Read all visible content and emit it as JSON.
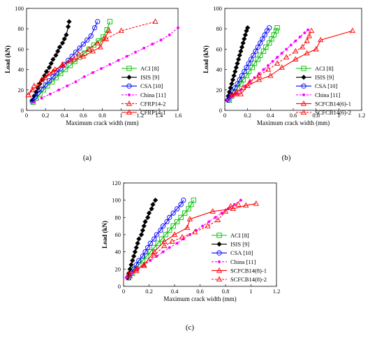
{
  "chart_data": [
    {
      "type": "line",
      "panel_label": "(a)",
      "xlabel": "Maximum crack width (mm)",
      "ylabel": "Load (kN)",
      "xlim": [
        0,
        1.6
      ],
      "ylim": [
        0,
        100
      ],
      "xticks": [
        "0",
        "0.2",
        "0.4",
        "0.6",
        "0.8",
        "1",
        "1.2",
        "1.4",
        "1.6"
      ],
      "yticks": [
        "0",
        "20",
        "40",
        "60",
        "80",
        "100"
      ],
      "legend_position": "right",
      "series": [
        {
          "name": "ACI [8]",
          "color": "#00c000",
          "marker": "square",
          "dashed": false,
          "x": [
            0.07,
            0.1,
            0.14,
            0.18,
            0.22,
            0.27,
            0.31,
            0.36,
            0.41,
            0.46,
            0.51,
            0.56,
            0.61,
            0.66,
            0.71,
            0.76,
            0.81,
            0.85,
            0.88
          ],
          "y": [
            8,
            12,
            16,
            20,
            24,
            28,
            32,
            36,
            40,
            44,
            48,
            52,
            56,
            60,
            64,
            68,
            72,
            79,
            87
          ]
        },
        {
          "name": "ISIS [9]",
          "color": "#000000",
          "marker": "diamond",
          "dashed": false,
          "x": [
            0.06,
            0.08,
            0.1,
            0.12,
            0.14,
            0.17,
            0.19,
            0.21,
            0.24,
            0.26,
            0.28,
            0.31,
            0.33,
            0.35,
            0.38,
            0.4,
            0.42,
            0.44,
            0.45
          ],
          "y": [
            10,
            14,
            18,
            22,
            26,
            30,
            34,
            38,
            42,
            46,
            50,
            54,
            58,
            62,
            66,
            70,
            74,
            82,
            87
          ]
        },
        {
          "name": "CSA [10]",
          "color": "#0000ff",
          "marker": "circle",
          "dashed": false,
          "x": [
            0.06,
            0.09,
            0.12,
            0.16,
            0.2,
            0.24,
            0.28,
            0.32,
            0.36,
            0.4,
            0.44,
            0.48,
            0.52,
            0.56,
            0.6,
            0.64,
            0.68,
            0.72,
            0.75
          ],
          "y": [
            9,
            13,
            17,
            21,
            25,
            29,
            33,
            37,
            41,
            45,
            49,
            53,
            57,
            61,
            65,
            69,
            73,
            81,
            87
          ]
        },
        {
          "name": "China [11]",
          "color": "#ff00ff",
          "marker": "dot",
          "dashed": true,
          "x": [
            0.08,
            0.16,
            0.25,
            0.34,
            0.43,
            0.52,
            0.61,
            0.7,
            0.79,
            0.88,
            0.97,
            1.06,
            1.15,
            1.24,
            1.33,
            1.42,
            1.51,
            1.6
          ],
          "y": [
            8,
            12,
            16,
            20,
            24,
            28,
            33,
            37,
            41,
            45,
            49,
            53,
            57,
            61,
            65,
            69,
            74,
            81
          ]
        },
        {
          "name": "CFRP14-2",
          "color": "#ff0000",
          "marker": "triangle",
          "dashed": true,
          "x": [
            0.02,
            0.08,
            0.16,
            0.24,
            0.3,
            0.38,
            0.46,
            0.55,
            0.66,
            0.75,
            0.84,
            1.0,
            1.36
          ],
          "y": [
            15,
            24,
            30,
            36,
            40,
            45,
            49,
            55,
            60,
            66,
            70,
            78,
            87
          ]
        },
        {
          "name": "CFRP14-1",
          "color": "#ff0000",
          "marker": "triangle",
          "dashed": false,
          "x": [
            0.02,
            0.06,
            0.12,
            0.2,
            0.28,
            0.38,
            0.5,
            0.6,
            0.7,
            0.78,
            0.82,
            0.87
          ],
          "y": [
            15,
            20,
            24,
            32,
            38,
            44,
            50,
            53,
            58,
            62,
            70,
            78
          ]
        }
      ]
    },
    {
      "type": "line",
      "panel_label": "(b)",
      "xlabel": "Maximum crack width (mm)",
      "ylabel": "Load (kN)",
      "xlim": [
        0,
        1.2
      ],
      "ylim": [
        0,
        100
      ],
      "xticks": [
        "0",
        "0.2",
        "0.4",
        "0.6",
        "0.8",
        "1",
        "1.2"
      ],
      "yticks": [
        "0",
        "20",
        "40",
        "60",
        "80",
        "100"
      ],
      "legend_position": "right",
      "series": [
        {
          "name": "ACI [8]",
          "color": "#00c000",
          "marker": "square",
          "dashed": false,
          "x": [
            0.04,
            0.06,
            0.09,
            0.11,
            0.14,
            0.16,
            0.19,
            0.21,
            0.24,
            0.26,
            0.29,
            0.31,
            0.34,
            0.36,
            0.39,
            0.41,
            0.43,
            0.45,
            0.46
          ],
          "y": [
            10,
            14,
            18,
            22,
            26,
            30,
            34,
            38,
            42,
            46,
            50,
            54,
            58,
            62,
            66,
            70,
            74,
            78,
            81
          ]
        },
        {
          "name": "ISIS [9]",
          "color": "#000000",
          "marker": "diamond",
          "dashed": false,
          "x": [
            0.02,
            0.03,
            0.04,
            0.05,
            0.06,
            0.07,
            0.08,
            0.09,
            0.1,
            0.11,
            0.12,
            0.13,
            0.14,
            0.15,
            0.16,
            0.17,
            0.18,
            0.19,
            0.2
          ],
          "y": [
            10,
            14,
            18,
            22,
            26,
            30,
            34,
            38,
            42,
            46,
            50,
            54,
            58,
            62,
            66,
            70,
            74,
            78,
            81
          ]
        },
        {
          "name": "CSA [10]",
          "color": "#0000ff",
          "marker": "circle",
          "dashed": false,
          "x": [
            0.03,
            0.05,
            0.07,
            0.09,
            0.11,
            0.13,
            0.15,
            0.17,
            0.19,
            0.21,
            0.23,
            0.25,
            0.27,
            0.29,
            0.31,
            0.33,
            0.35,
            0.37,
            0.39
          ],
          "y": [
            10,
            14,
            18,
            22,
            26,
            30,
            34,
            38,
            42,
            46,
            50,
            54,
            58,
            62,
            66,
            70,
            74,
            78,
            81
          ]
        },
        {
          "name": "China [11]",
          "color": "#ff00ff",
          "marker": "dot",
          "dashed": true,
          "x": [
            0.02,
            0.06,
            0.1,
            0.14,
            0.18,
            0.22,
            0.26,
            0.3,
            0.34,
            0.38,
            0.42,
            0.46,
            0.5,
            0.54,
            0.58,
            0.62,
            0.66,
            0.7,
            0.73
          ],
          "y": [
            10,
            13,
            16,
            20,
            24,
            28,
            32,
            36,
            40,
            44,
            48,
            52,
            56,
            60,
            64,
            68,
            72,
            76,
            79
          ]
        },
        {
          "name": "SCFCB14(6)-1",
          "color": "#ff0000",
          "marker": "triangle",
          "dashed": false,
          "x": [
            0.06,
            0.1,
            0.14,
            0.2,
            0.3,
            0.4,
            0.5,
            0.62,
            0.72,
            0.8,
            0.84,
            1.12
          ],
          "y": [
            15,
            16,
            16,
            24,
            30,
            34,
            42,
            50,
            56,
            60,
            69,
            78
          ]
        },
        {
          "name": "SCFCB14(6)-2",
          "color": "#ff0000",
          "marker": "triangle",
          "dashed": true,
          "x": [
            0.06,
            0.1,
            0.16,
            0.22,
            0.3,
            0.38,
            0.46,
            0.54,
            0.62,
            0.68,
            0.72,
            0.74,
            0.76
          ],
          "y": [
            15,
            18,
            22,
            28,
            34,
            40,
            46,
            52,
            58,
            62,
            68,
            73,
            78
          ]
        }
      ]
    },
    {
      "type": "line",
      "panel_label": "(c)",
      "xlabel": "Maximum crack width (mm)",
      "ylabel": "Load (kN)",
      "xlim": [
        0,
        1.2
      ],
      "ylim": [
        0,
        120
      ],
      "xticks": [
        "0",
        "0.2",
        "0.4",
        "0.6",
        "0.8",
        "1",
        "1.2"
      ],
      "yticks": [
        "0",
        "20",
        "40",
        "60",
        "80",
        "100",
        "120"
      ],
      "legend_position": "right",
      "series": [
        {
          "name": "ACI [8]",
          "color": "#00c000",
          "marker": "square",
          "dashed": false,
          "x": [
            0.04,
            0.07,
            0.09,
            0.12,
            0.15,
            0.18,
            0.21,
            0.24,
            0.27,
            0.3,
            0.33,
            0.36,
            0.39,
            0.42,
            0.45,
            0.48,
            0.51,
            0.53,
            0.55
          ],
          "y": [
            10,
            15,
            20,
            25,
            30,
            35,
            40,
            45,
            50,
            55,
            60,
            65,
            70,
            75,
            80,
            85,
            90,
            95,
            100
          ]
        },
        {
          "name": "ISIS [9]",
          "color": "#000000",
          "marker": "diamond",
          "dashed": false,
          "x": [
            0.03,
            0.04,
            0.05,
            0.06,
            0.07,
            0.08,
            0.09,
            0.1,
            0.11,
            0.12,
            0.14,
            0.15,
            0.16,
            0.17,
            0.19,
            0.2,
            0.22,
            0.23,
            0.25
          ],
          "y": [
            10,
            15,
            20,
            25,
            30,
            35,
            40,
            45,
            50,
            55,
            60,
            65,
            70,
            75,
            80,
            85,
            90,
            95,
            100
          ]
        },
        {
          "name": "CSA [10]",
          "color": "#0000ff",
          "marker": "circle",
          "dashed": false,
          "x": [
            0.04,
            0.06,
            0.08,
            0.1,
            0.12,
            0.15,
            0.17,
            0.19,
            0.21,
            0.24,
            0.26,
            0.29,
            0.31,
            0.34,
            0.36,
            0.39,
            0.42,
            0.45,
            0.47
          ],
          "y": [
            10,
            15,
            20,
            25,
            30,
            35,
            40,
            45,
            50,
            55,
            60,
            65,
            70,
            75,
            80,
            85,
            90,
            95,
            100
          ]
        },
        {
          "name": "China [11]",
          "color": "#ff00ff",
          "marker": "dot",
          "dashed": true,
          "x": [
            0.02,
            0.06,
            0.11,
            0.16,
            0.21,
            0.26,
            0.31,
            0.36,
            0.42,
            0.47,
            0.52,
            0.57,
            0.62,
            0.67,
            0.72,
            0.77,
            0.82,
            0.87,
            0.92
          ],
          "y": [
            10,
            15,
            20,
            25,
            30,
            35,
            40,
            45,
            50,
            55,
            60,
            65,
            70,
            75,
            80,
            85,
            90,
            95,
            100
          ]
        },
        {
          "name": "SCFCB14(8)-1",
          "color": "#ff0000",
          "marker": "triangle",
          "dashed": false,
          "x": [
            0.04,
            0.1,
            0.16,
            0.24,
            0.32,
            0.4,
            0.5,
            0.52,
            0.7,
            0.86,
            0.96,
            1.04
          ],
          "y": [
            14,
            20,
            25,
            40,
            52,
            60,
            68,
            78,
            87,
            90,
            94,
            96
          ]
        },
        {
          "name": "SCFCB14(8)-2",
          "color": "#ff0000",
          "marker": "triangle",
          "dashed": true,
          "x": [
            0.05,
            0.1,
            0.16,
            0.24,
            0.32,
            0.38,
            0.46,
            0.56,
            0.66,
            0.74,
            0.8,
            0.84,
            0.9
          ],
          "y": [
            12,
            18,
            24,
            36,
            47,
            52,
            57,
            63,
            70,
            77,
            87,
            93,
            95
          ]
        }
      ]
    }
  ]
}
